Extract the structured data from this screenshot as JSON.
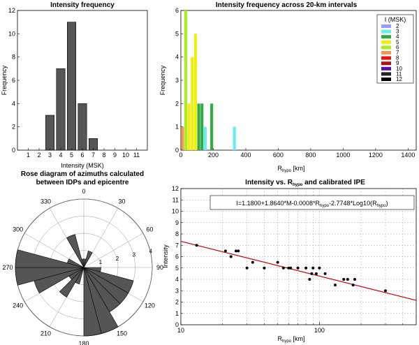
{
  "chart_data": [
    {
      "type": "bar",
      "title": "Intensity frequency",
      "xlabel": "Intensity (MSK)",
      "ylabel": "Frequency",
      "categories": [
        "1",
        "2",
        "3",
        "4",
        "5",
        "6",
        "7",
        "8",
        "9",
        "10",
        "11"
      ],
      "values": [
        0,
        0,
        3,
        7,
        11,
        4,
        1,
        0,
        0,
        0,
        0
      ],
      "ylim": [
        0,
        12
      ],
      "yticks": [
        "0",
        "2",
        "4",
        "6",
        "8",
        "10",
        "12"
      ],
      "bar_color": "#555555"
    },
    {
      "type": "bar",
      "title": "Intensity frequency across 20-km intervals",
      "xlabel_main": "R",
      "xlabel_sub": "hypo",
      "xlabel_unit": " [km]",
      "ylabel": "Frequency",
      "xlim": [
        0,
        1450
      ],
      "ylim": [
        0,
        6
      ],
      "xticks": [
        "0",
        "200",
        "400",
        "600",
        "800",
        "1000",
        "1200",
        "1400"
      ],
      "yticks": [
        "0",
        "1",
        "2",
        "3",
        "4",
        "5",
        "6"
      ],
      "legend_title": "I (MSK)",
      "legend": [
        {
          "name": "2",
          "color": "#9a9aff"
        },
        {
          "name": "3",
          "color": "#66eeee"
        },
        {
          "name": "4",
          "color": "#33aa44"
        },
        {
          "name": "5",
          "color": "#eeee11"
        },
        {
          "name": "6",
          "color": "#aaee22"
        },
        {
          "name": "7",
          "color": "#ee9955"
        },
        {
          "name": "8",
          "color": "#ee1111"
        },
        {
          "name": "9",
          "color": "#aa1111"
        },
        {
          "name": "10",
          "color": "#5511aa"
        },
        {
          "name": "11",
          "color": "#222222"
        },
        {
          "name": "12",
          "color": "#000000"
        }
      ],
      "bars": [
        {
          "x": 10,
          "value": 1,
          "color": "#ee9955"
        },
        {
          "x": 30,
          "value": 6,
          "color": "#aaee22"
        },
        {
          "x": 50,
          "value": 2,
          "color": "#eeee11"
        },
        {
          "x": 70,
          "value": 4,
          "color": "#eeee11"
        },
        {
          "x": 90,
          "value": 5,
          "color": "#eeee11"
        },
        {
          "x": 110,
          "value": 2,
          "color": "#33aa44"
        },
        {
          "x": 130,
          "value": 2,
          "color": "#33aa44"
        },
        {
          "x": 150,
          "value": 1,
          "color": "#66eeee"
        },
        {
          "x": 190,
          "value": 2,
          "color": "#33aa44"
        },
        {
          "x": 330,
          "value": 1,
          "color": "#66eeee"
        }
      ]
    },
    {
      "type": "rose",
      "title": "Rose diagram of azimuths calculated",
      "title2": "between  IDPs and epicentre",
      "angle_labels": [
        {
          "deg": 0,
          "text": "0"
        },
        {
          "deg": 30,
          "text": "30"
        },
        {
          "deg": 60,
          "text": "60"
        },
        {
          "deg": 90,
          "text": "90"
        },
        {
          "deg": 120,
          "text": "120"
        },
        {
          "deg": 150,
          "text": "150"
        },
        {
          "deg": 180,
          "text": "180"
        },
        {
          "deg": 210,
          "text": "210"
        },
        {
          "deg": 240,
          "text": "240"
        },
        {
          "deg": 270,
          "text": "270"
        },
        {
          "deg": 300,
          "text": "300"
        },
        {
          "deg": 330,
          "text": "330"
        }
      ],
      "rings": [
        1,
        2,
        3,
        4
      ],
      "ring_labels": [
        "1",
        "2",
        "3",
        "4"
      ],
      "rmax": 4,
      "sectors": [
        {
          "from": 330,
          "to": 345,
          "value": 2
        },
        {
          "from": 345,
          "to": 360,
          "value": 0.5
        },
        {
          "from": 0,
          "to": 15,
          "value": 0.5
        },
        {
          "from": 15,
          "to": 30,
          "value": 1
        },
        {
          "from": 90,
          "to": 105,
          "value": 1
        },
        {
          "from": 105,
          "to": 120,
          "value": 3
        },
        {
          "from": 120,
          "to": 135,
          "value": 3
        },
        {
          "from": 135,
          "to": 150,
          "value": 3
        },
        {
          "from": 150,
          "to": 165,
          "value": 4
        },
        {
          "from": 165,
          "to": 180,
          "value": 4
        },
        {
          "from": 195,
          "to": 210,
          "value": 1
        },
        {
          "from": 210,
          "to": 225,
          "value": 2
        },
        {
          "from": 225,
          "to": 240,
          "value": 1
        },
        {
          "from": 240,
          "to": 255,
          "value": 3
        },
        {
          "from": 255,
          "to": 270,
          "value": 4
        },
        {
          "from": 270,
          "to": 285,
          "value": 4
        },
        {
          "from": 285,
          "to": 300,
          "value": 1
        }
      ],
      "fill_color": "#555555"
    },
    {
      "type": "scatter",
      "title_a": "Intensity vs. R",
      "title_sub": "hypo",
      "title_b": " and calibrated IPE",
      "xlabel_main": "R",
      "xlabel_sub": "hypo",
      "xlabel_unit": " [km]",
      "ylabel": "Intensity",
      "xscale": "log",
      "xlim": [
        10,
        500
      ],
      "ylim": [
        0,
        12
      ],
      "xticks": [
        {
          "v": 10,
          "t": "10"
        },
        {
          "v": 100,
          "t": "100"
        }
      ],
      "yticks": [
        "0",
        "1",
        "2",
        "3",
        "4",
        "5",
        "6",
        "7",
        "8",
        "9",
        "10",
        "11",
        "12"
      ],
      "grid": true,
      "equation_parts": [
        "I=1.1800+1.8640*M-0.0008*R",
        "hypo",
        "-2.7748*Log10(R",
        "hypo",
        ")"
      ],
      "points": [
        [
          13,
          7
        ],
        [
          21,
          6.5
        ],
        [
          23,
          6
        ],
        [
          25,
          6.5
        ],
        [
          26,
          6.5
        ],
        [
          30,
          5
        ],
        [
          33,
          5.5
        ],
        [
          40,
          5
        ],
        [
          50,
          5.5
        ],
        [
          55,
          5
        ],
        [
          60,
          5
        ],
        [
          62,
          5
        ],
        [
          70,
          5
        ],
        [
          80,
          5
        ],
        [
          85,
          4
        ],
        [
          88,
          4.5
        ],
        [
          90,
          5
        ],
        [
          95,
          4.5
        ],
        [
          100,
          5
        ],
        [
          110,
          4.5
        ],
        [
          130,
          3.5
        ],
        [
          150,
          4
        ],
        [
          160,
          4
        ],
        [
          175,
          3.5
        ],
        [
          180,
          4
        ],
        [
          300,
          3
        ]
      ],
      "fit": {
        "x": [
          10,
          500
        ],
        "y": [
          7.35,
          2.15
        ],
        "color": "#cc0000"
      }
    }
  ]
}
